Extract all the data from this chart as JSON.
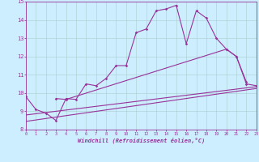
{
  "xlabel": "Windchill (Refroidissement éolien,°C)",
  "xlim": [
    0,
    23
  ],
  "ylim": [
    8,
    15
  ],
  "yticks": [
    8,
    9,
    10,
    11,
    12,
    13,
    14,
    15
  ],
  "xticks": [
    0,
    1,
    2,
    3,
    4,
    5,
    6,
    7,
    8,
    9,
    10,
    11,
    12,
    13,
    14,
    15,
    16,
    17,
    18,
    19,
    20,
    21,
    22,
    23
  ],
  "background_color": "#cceeff",
  "line_color": "#993399",
  "grid_color": "#aacccc",
  "line1_x": [
    0,
    1,
    2,
    3,
    4,
    5,
    6,
    7,
    8,
    9,
    10,
    11,
    12,
    13,
    14,
    15,
    16,
    17,
    18,
    19,
    20,
    21,
    22
  ],
  "line1_y": [
    9.8,
    9.1,
    8.9,
    8.5,
    9.7,
    9.65,
    10.5,
    10.4,
    10.8,
    11.5,
    11.5,
    13.3,
    13.5,
    14.5,
    14.6,
    14.8,
    12.7,
    14.5,
    14.1,
    13.0,
    12.4,
    12.0,
    10.6
  ],
  "line2_x": [
    3,
    4,
    20,
    21,
    22,
    23
  ],
  "line2_y": [
    9.7,
    9.65,
    12.4,
    12.0,
    10.5,
    10.4
  ],
  "line3_x": [
    0,
    23
  ],
  "line3_y": [
    8.8,
    10.35
  ],
  "line4_x": [
    0,
    23
  ],
  "line4_y": [
    8.45,
    10.25
  ]
}
